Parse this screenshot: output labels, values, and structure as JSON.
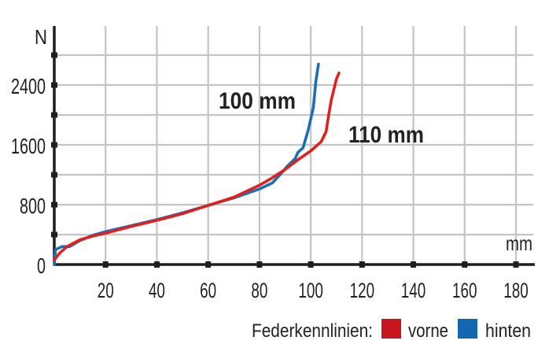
{
  "chart_data": {
    "type": "line",
    "title": "",
    "xlabel": "mm",
    "ylabel": "N",
    "xlim": [
      0,
      185
    ],
    "ylim": [
      0,
      2900
    ],
    "x_ticks": [
      20,
      40,
      60,
      80,
      100,
      120,
      140,
      160,
      180
    ],
    "x_tick_labels": [
      "20",
      "40",
      "60",
      "80",
      "100",
      "120",
      "140",
      "160",
      "180"
    ],
    "y_ticks": [
      0,
      800,
      1600,
      2400
    ],
    "y_tick_labels": [
      "0",
      "800",
      "1600",
      "2400"
    ],
    "y_minor_ticks": [
      400,
      1200,
      2000,
      2800
    ],
    "grid": true,
    "legend_title": "Federkennlinien:",
    "legend_position": "bottom-right",
    "series": [
      {
        "name": "vorne",
        "color": "#e0201f",
        "annotation": "110 mm",
        "x": [
          0,
          2,
          5,
          10,
          15,
          20,
          30,
          40,
          50,
          60,
          70,
          80,
          85,
          90,
          95,
          100,
          104,
          106,
          107,
          108,
          110,
          111
        ],
        "y": [
          60,
          150,
          240,
          330,
          380,
          420,
          510,
          590,
          680,
          790,
          900,
          1060,
          1160,
          1270,
          1400,
          1520,
          1640,
          1780,
          2000,
          2200,
          2480,
          2560
        ]
      },
      {
        "name": "hinten",
        "color": "#1c6fb5",
        "annotation": "100 mm",
        "x": [
          0,
          0.5,
          3,
          6,
          10,
          15,
          20,
          30,
          40,
          50,
          60,
          70,
          80,
          85,
          88,
          91,
          94,
          95,
          97,
          99,
          101,
          102,
          103
        ],
        "y": [
          0,
          200,
          240,
          240,
          320,
          390,
          440,
          520,
          600,
          690,
          790,
          890,
          1010,
          1090,
          1200,
          1320,
          1420,
          1500,
          1560,
          1800,
          2100,
          2450,
          2680
        ]
      }
    ]
  },
  "labels": {
    "y_unit": "N",
    "x_unit": "mm",
    "annotation_front": "110 mm",
    "annotation_rear": "100 mm",
    "legend_title": "Federkennlinien:",
    "legend_front": "vorne",
    "legend_rear": "hinten"
  },
  "colors": {
    "front": "#d3212a",
    "rear": "#1f6fb2",
    "grid": "#c4c4c4",
    "axis": "#1e1e1e"
  }
}
